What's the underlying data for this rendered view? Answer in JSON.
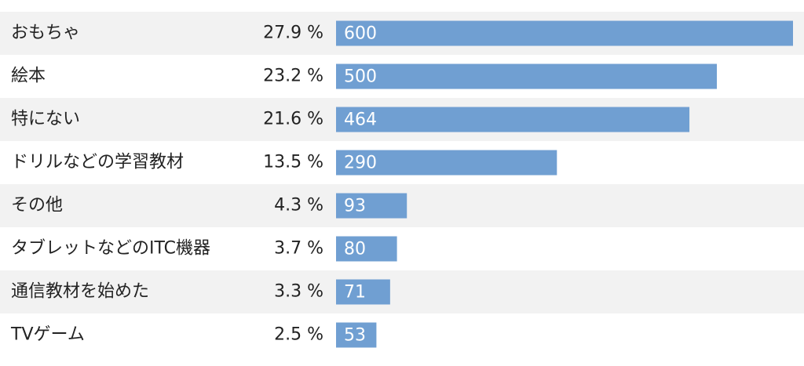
{
  "chart_data": {
    "type": "bar",
    "orientation": "horizontal",
    "categories": [
      "おもちゃ",
      "絵本",
      "特にない",
      "ドリルなどの学習教材",
      "その他",
      "タブレットなどのITC機器",
      "通信教材を始めた",
      "TVゲーム"
    ],
    "series": [
      {
        "values": [
          27.9,
          23.2,
          21.6,
          13.5,
          4.3,
          3.7,
          3.3,
          2.5
        ],
        "value_labels": [
          "27.9 %",
          "23.2 %",
          "21.6 %",
          "13.5 %",
          "4.3 %",
          "3.7 %",
          "3.3 %",
          "2.5 %"
        ]
      },
      {
        "values": [
          600,
          500,
          464,
          290,
          93,
          80,
          71,
          53
        ],
        "color": "#709fd2"
      }
    ],
    "xlim": [
      0,
      600
    ]
  }
}
